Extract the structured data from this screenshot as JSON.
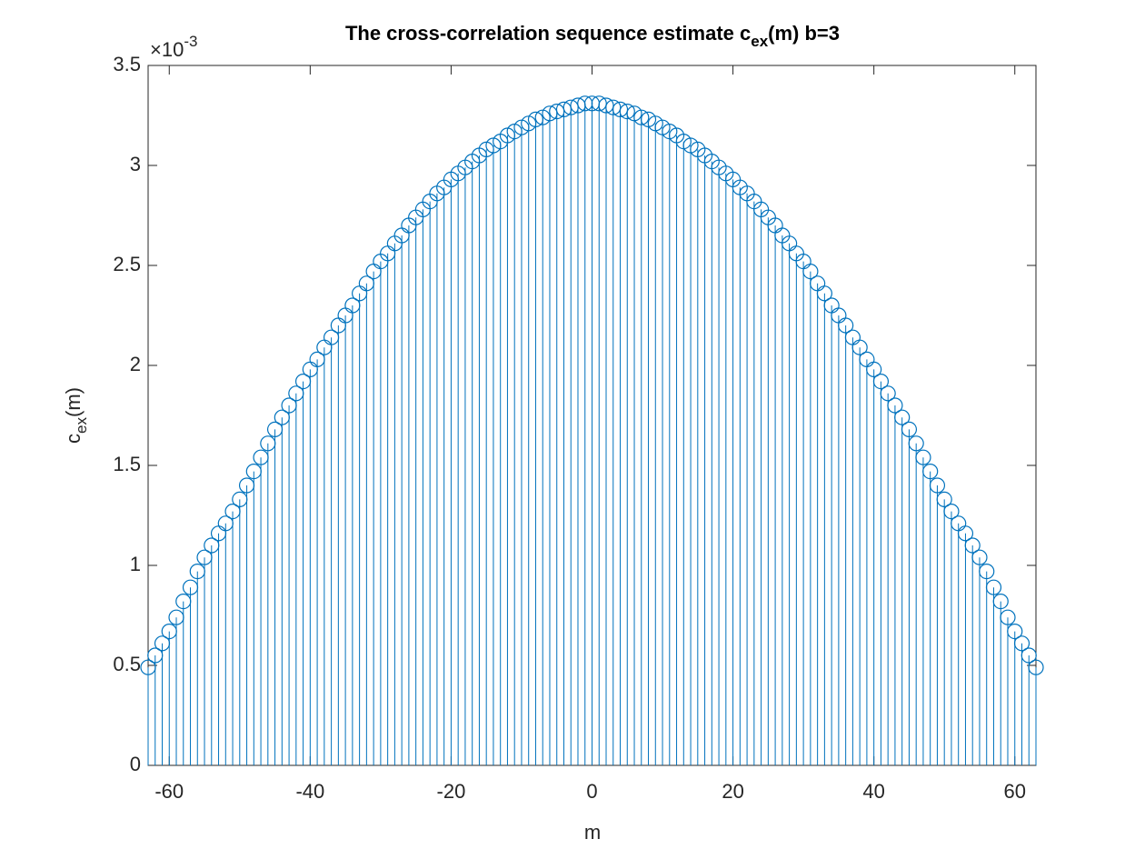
{
  "chart_data": {
    "type": "stem",
    "title": "The cross-correlation sequence estimate c",
    "title_subscript": "ex",
    "title_end": "(m) b=3",
    "xlabel": "m",
    "ylabel": "c",
    "ylabel_subscript": "ex",
    "ylabel_end": "(m)",
    "y_multiplier": "×10",
    "y_multiplier_exponent": "-3",
    "color": "#0072bd",
    "xlim": [
      -63,
      63
    ],
    "xticks": [
      -60,
      -40,
      -20,
      0,
      20,
      40,
      60
    ],
    "ylim": [
      0,
      3.5
    ],
    "yticks": [
      0,
      0.5,
      1,
      1.5,
      2,
      2.5,
      3,
      3.5
    ],
    "x": [
      -63,
      -62,
      -61,
      -60,
      -59,
      -58,
      -57,
      -56,
      -55,
      -54,
      -53,
      -52,
      -51,
      -50,
      -49,
      -48,
      -47,
      -46,
      -45,
      -44,
      -43,
      -42,
      -41,
      -40,
      -39,
      -38,
      -37,
      -36,
      -35,
      -34,
      -33,
      -32,
      -31,
      -30,
      -29,
      -28,
      -27,
      -26,
      -25,
      -24,
      -23,
      -22,
      -21,
      -20,
      -19,
      -18,
      -17,
      -16,
      -15,
      -14,
      -13,
      -12,
      -11,
      -10,
      -9,
      -8,
      -7,
      -6,
      -5,
      -4,
      -3,
      -2,
      -1,
      0,
      1,
      2,
      3,
      4,
      5,
      6,
      7,
      8,
      9,
      10,
      11,
      12,
      13,
      14,
      15,
      16,
      17,
      18,
      19,
      20,
      21,
      22,
      23,
      24,
      25,
      26,
      27,
      28,
      29,
      30,
      31,
      32,
      33,
      34,
      35,
      36,
      37,
      38,
      39,
      40,
      41,
      42,
      43,
      44,
      45,
      46,
      47,
      48,
      49,
      50,
      51,
      52,
      53,
      54,
      55,
      56,
      57,
      58,
      59,
      60,
      61,
      62,
      63
    ],
    "values": [
      0.49,
      0.55,
      0.61,
      0.67,
      0.74,
      0.82,
      0.89,
      0.97,
      1.04,
      1.1,
      1.16,
      1.21,
      1.27,
      1.33,
      1.4,
      1.47,
      1.54,
      1.61,
      1.68,
      1.74,
      1.8,
      1.86,
      1.92,
      1.98,
      2.03,
      2.09,
      2.14,
      2.2,
      2.25,
      2.3,
      2.36,
      2.41,
      2.47,
      2.52,
      2.56,
      2.61,
      2.65,
      2.7,
      2.74,
      2.78,
      2.82,
      2.86,
      2.89,
      2.93,
      2.96,
      2.99,
      3.02,
      3.05,
      3.08,
      3.1,
      3.12,
      3.15,
      3.17,
      3.19,
      3.21,
      3.23,
      3.24,
      3.26,
      3.27,
      3.28,
      3.29,
      3.3,
      3.31,
      3.31,
      3.31,
      3.3,
      3.29,
      3.28,
      3.27,
      3.26,
      3.24,
      3.23,
      3.21,
      3.19,
      3.17,
      3.15,
      3.12,
      3.1,
      3.08,
      3.05,
      3.02,
      2.99,
      2.96,
      2.93,
      2.89,
      2.86,
      2.82,
      2.78,
      2.74,
      2.7,
      2.65,
      2.61,
      2.56,
      2.52,
      2.47,
      2.41,
      2.36,
      2.3,
      2.25,
      2.2,
      2.14,
      2.09,
      2.03,
      1.98,
      1.92,
      1.86,
      1.8,
      1.74,
      1.68,
      1.61,
      1.54,
      1.47,
      1.4,
      1.33,
      1.27,
      1.21,
      1.16,
      1.1,
      1.04,
      0.97,
      0.89,
      0.82,
      0.74,
      0.67,
      0.61,
      0.55,
      0.49
    ]
  }
}
